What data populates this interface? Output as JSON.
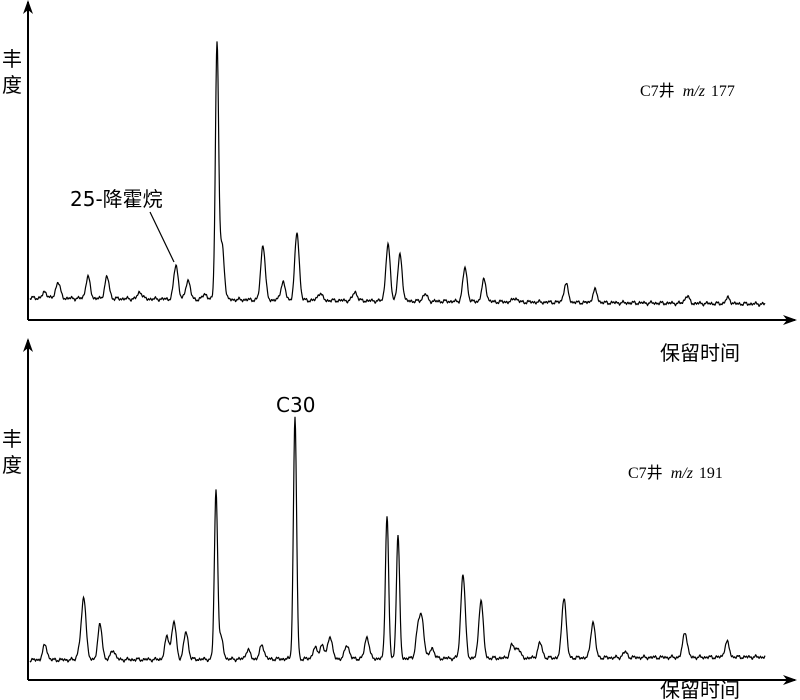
{
  "panels": [
    {
      "y_label": [
        "丰",
        "度"
      ],
      "x_label": "保留时间",
      "title": {
        "well": "C7井",
        "ion": "m/z",
        "mass": "177"
      },
      "annotation": "25-降霍烷"
    },
    {
      "y_label": [
        "丰",
        "度"
      ],
      "x_label": "保留时间",
      "title": {
        "well": "C7井",
        "ion": "m/z",
        "mass": "191"
      },
      "annotation": "C30"
    }
  ]
}
